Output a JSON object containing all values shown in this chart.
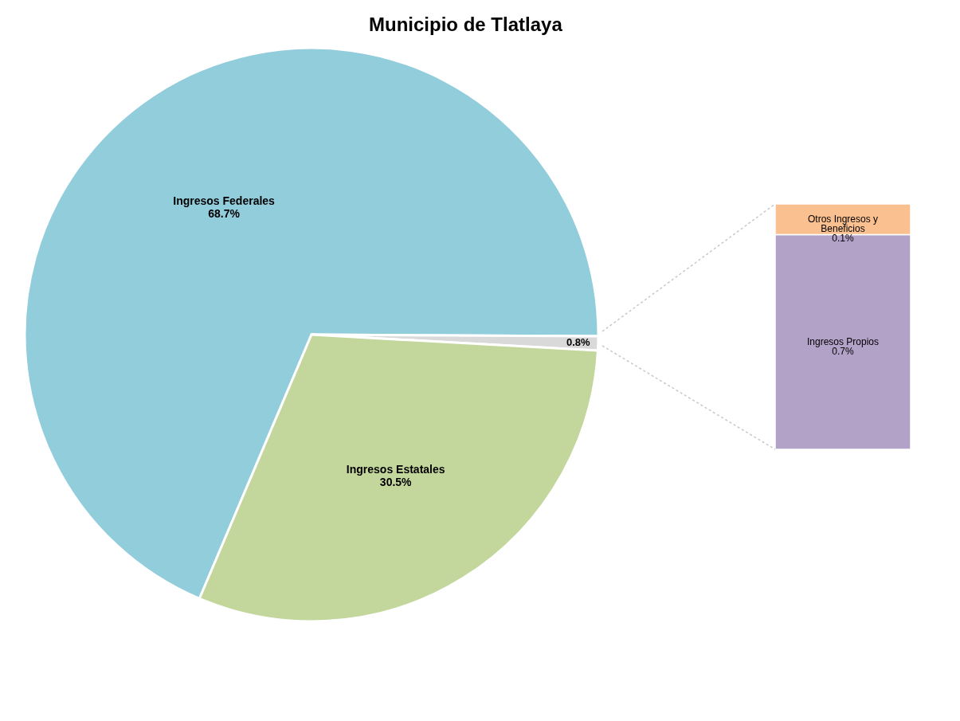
{
  "chart_data": [
    {
      "type": "pie",
      "title": "Municipio de Tlatlaya",
      "categories": [
        "Ingresos Federales",
        null,
        "Ingresos Estatales"
      ],
      "values": [
        68.7,
        0.8,
        30.5
      ],
      "colors": [
        "#92cddc",
        "#d9d9d9",
        "#c3d69b"
      ],
      "value_labels": [
        "68.7%",
        "0.8%",
        "30.5%"
      ]
    },
    {
      "type": "bar",
      "stacked": true,
      "categories": [
        null
      ],
      "series": [
        {
          "name": "Ingresos Propios",
          "color": "#b3a2c7",
          "values": [
            0.7
          ],
          "value_labels": [
            "0.7%"
          ]
        },
        {
          "name": "Otros Ingresos y Beneficios",
          "color": "#fac090",
          "values": [
            0.1
          ],
          "value_labels": [
            "0.1%"
          ]
        }
      ]
    }
  ]
}
